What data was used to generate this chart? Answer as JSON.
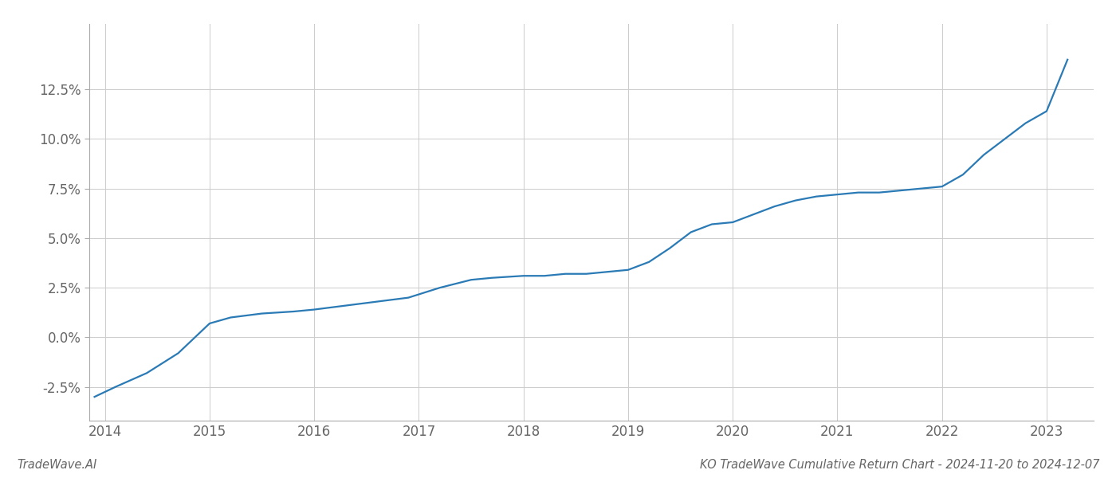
{
  "x_values": [
    2013.9,
    2014.1,
    2014.4,
    2014.7,
    2015.0,
    2015.2,
    2015.5,
    2015.8,
    2016.0,
    2016.3,
    2016.6,
    2016.9,
    2017.2,
    2017.5,
    2017.7,
    2018.0,
    2018.2,
    2018.4,
    2018.6,
    2018.8,
    2019.0,
    2019.2,
    2019.4,
    2019.6,
    2019.8,
    2020.0,
    2020.2,
    2020.4,
    2020.6,
    2020.8,
    2021.0,
    2021.2,
    2021.4,
    2021.6,
    2021.8,
    2022.0,
    2022.2,
    2022.4,
    2022.6,
    2022.8,
    2023.0,
    2023.2
  ],
  "y_values": [
    -0.03,
    -0.025,
    -0.018,
    -0.008,
    0.007,
    0.01,
    0.012,
    0.013,
    0.014,
    0.016,
    0.018,
    0.02,
    0.025,
    0.029,
    0.03,
    0.031,
    0.031,
    0.032,
    0.032,
    0.033,
    0.034,
    0.038,
    0.045,
    0.053,
    0.057,
    0.058,
    0.062,
    0.066,
    0.069,
    0.071,
    0.072,
    0.073,
    0.073,
    0.074,
    0.075,
    0.076,
    0.082,
    0.092,
    0.1,
    0.108,
    0.114,
    0.14
  ],
  "line_color": "#2a7ab5",
  "line_width": 1.6,
  "title": "KO TradeWave Cumulative Return Chart - 2024-11-20 to 2024-12-07",
  "watermark": "TradeWave.AI",
  "bg_color": "#ffffff",
  "grid_color": "#cccccc",
  "axis_color": "#aaaaaa",
  "text_color": "#666666",
  "xlim": [
    2013.85,
    2023.45
  ],
  "ylim": [
    -0.042,
    0.158
  ],
  "yticks": [
    -0.025,
    0.0,
    0.025,
    0.05,
    0.075,
    0.1,
    0.125
  ],
  "xticks": [
    2014,
    2015,
    2016,
    2017,
    2018,
    2019,
    2020,
    2021,
    2022,
    2023
  ],
  "title_fontsize": 10.5,
  "watermark_fontsize": 10.5,
  "tick_fontsize": 12
}
